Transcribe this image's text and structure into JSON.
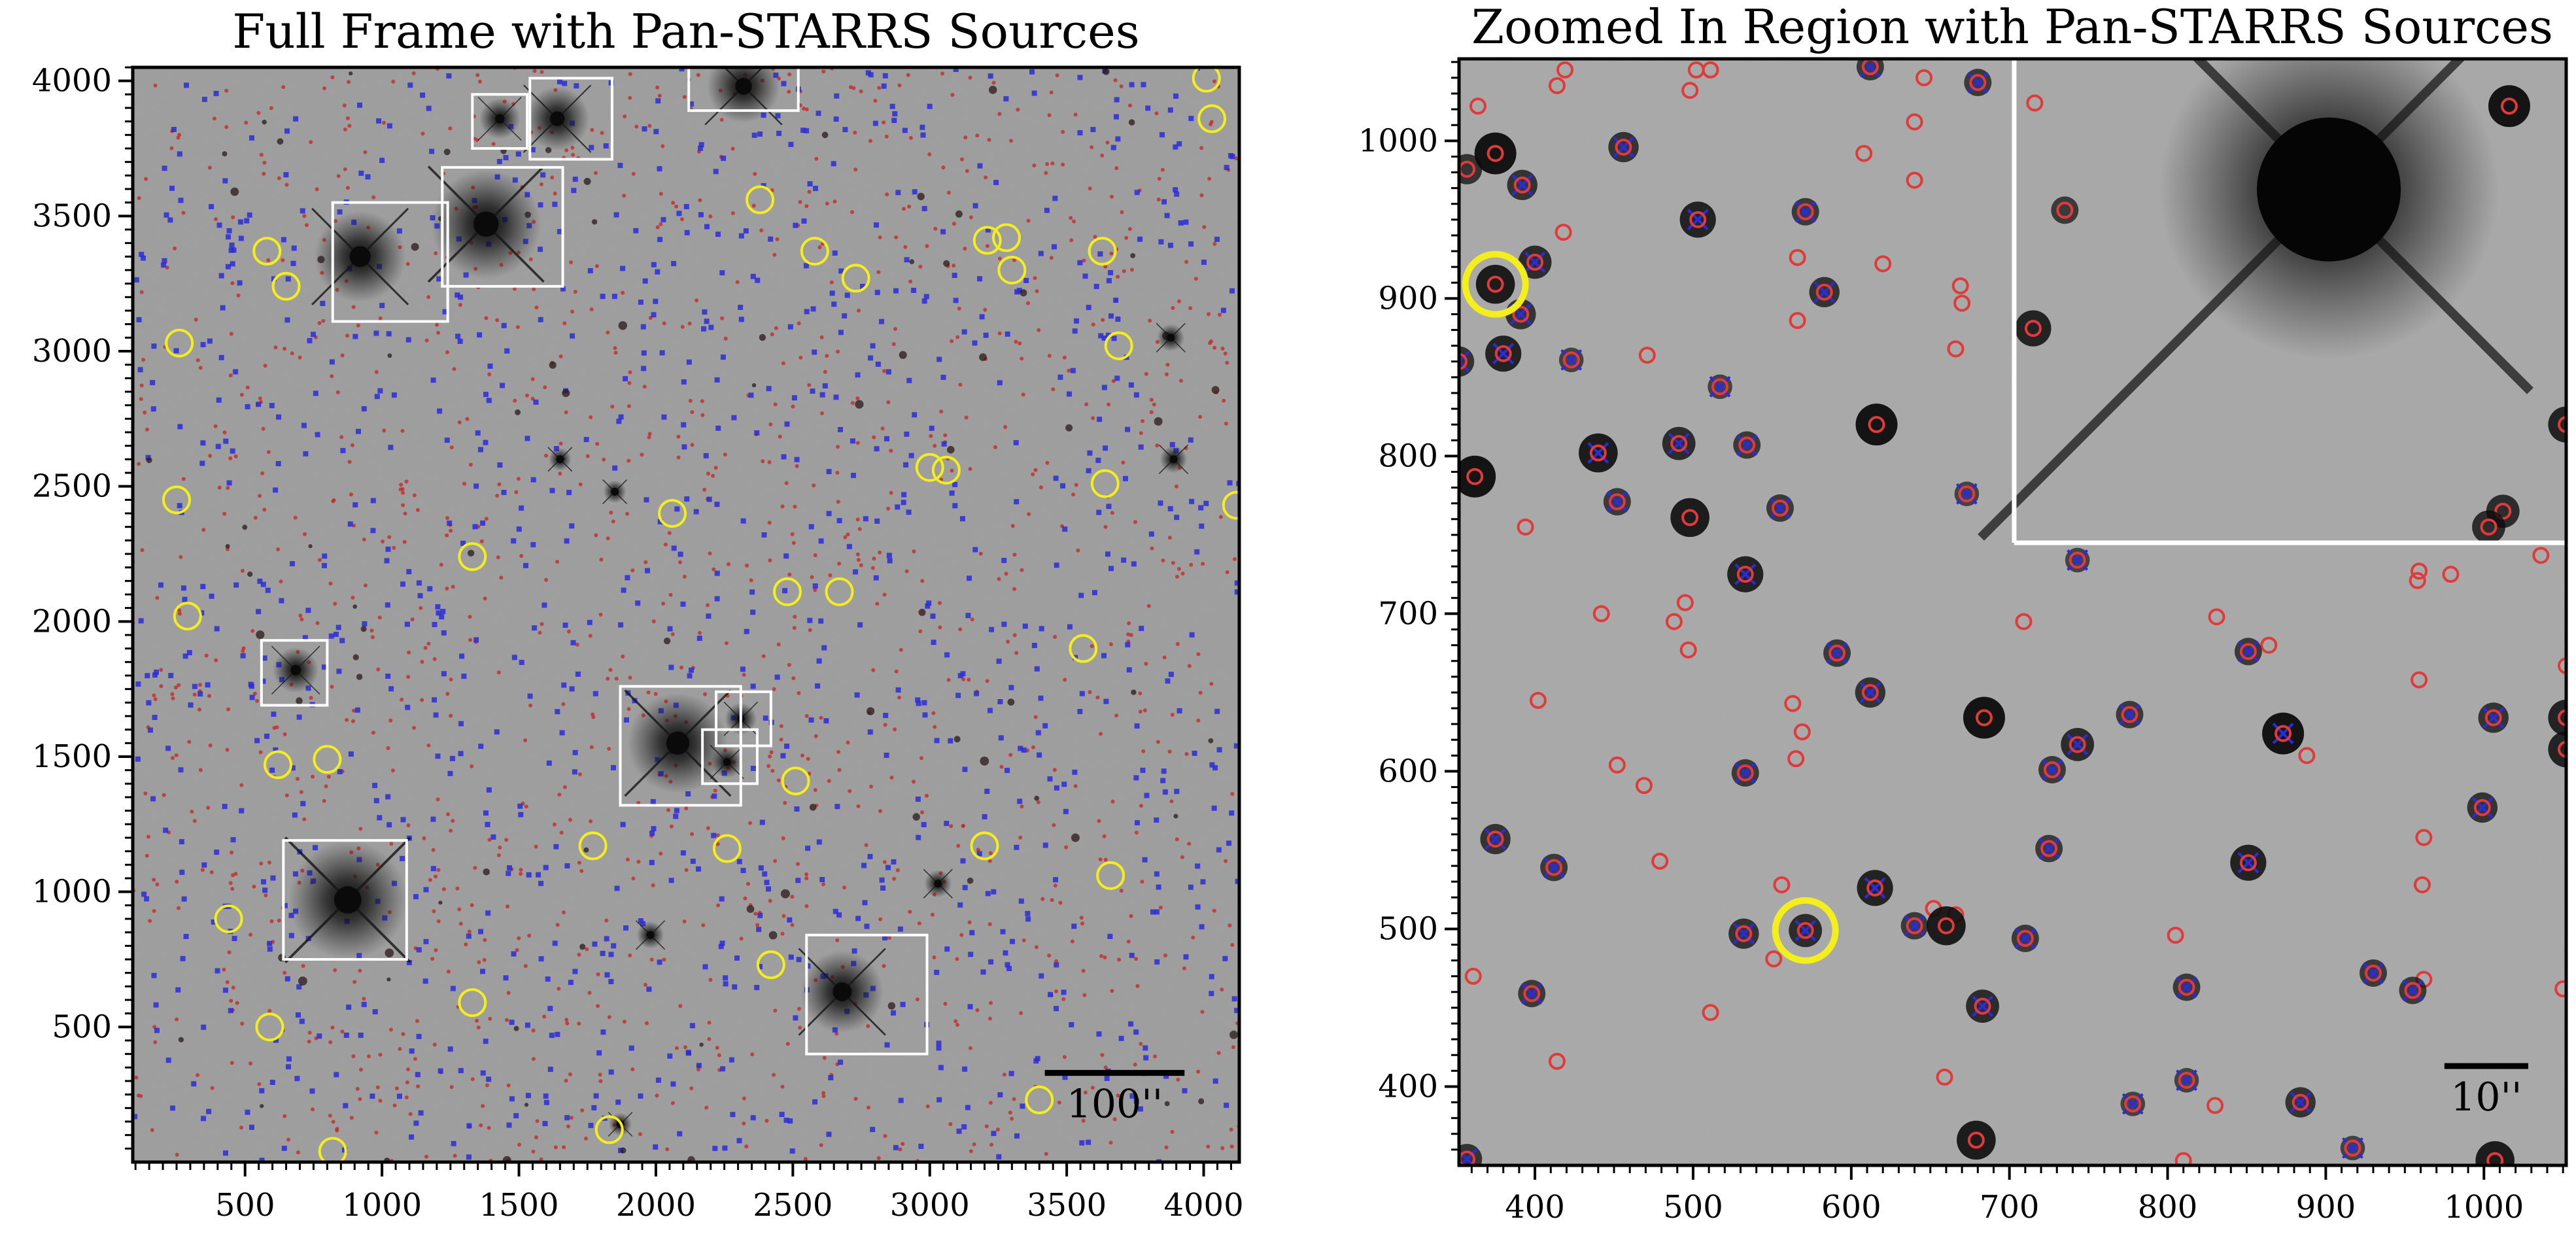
{
  "figure": {
    "colors": {
      "sky_background": "#9b9b9b",
      "star_core": "#0a0a0a",
      "pan_starrs_marker": "#e03a3a",
      "pan_starrs_dot": "#c42a2a",
      "blue_marker": "#2b2bd8",
      "yellow_circle": "#f3ee1c",
      "cutout_box": "#ffffff",
      "axis": "#000000"
    }
  },
  "chart_data": [
    {
      "type": "scatter",
      "title": "Full Frame with Pan-STARRS Sources",
      "xlabel": "",
      "ylabel": "",
      "xlim": [
        90,
        4130
      ],
      "ylim": [
        0,
        4050
      ],
      "x_ticks": [
        500,
        1000,
        1500,
        2000,
        2500,
        3000,
        3500,
        4000
      ],
      "y_ticks": [
        500,
        1000,
        1500,
        2000,
        2500,
        3000,
        3500,
        4000
      ],
      "scale_bar": {
        "label": "100''",
        "x_start": 3420,
        "x_end": 3930,
        "y": 330
      },
      "bright_stars": [
        {
          "x": 920,
          "y": 3350,
          "size": 1.0
        },
        {
          "x": 1380,
          "y": 3470,
          "size": 1.2
        },
        {
          "x": 1430,
          "y": 3860,
          "size": 0.45
        },
        {
          "x": 1640,
          "y": 3860,
          "size": 0.7
        },
        {
          "x": 2320,
          "y": 3980,
          "size": 0.8
        },
        {
          "x": 685,
          "y": 1820,
          "size": 0.5
        },
        {
          "x": 2080,
          "y": 1550,
          "size": 1.1
        },
        {
          "x": 2310,
          "y": 1640,
          "size": 0.35
        },
        {
          "x": 2260,
          "y": 1480,
          "size": 0.35
        },
        {
          "x": 875,
          "y": 970,
          "size": 1.3
        },
        {
          "x": 2680,
          "y": 630,
          "size": 0.9
        },
        {
          "x": 3030,
          "y": 1030,
          "size": 0.3
        },
        {
          "x": 1980,
          "y": 840,
          "size": 0.3
        },
        {
          "x": 3880,
          "y": 3050,
          "size": 0.3
        },
        {
          "x": 3890,
          "y": 2600,
          "size": 0.3
        },
        {
          "x": 1650,
          "y": 2600,
          "size": 0.25
        },
        {
          "x": 1850,
          "y": 2480,
          "size": 0.25
        },
        {
          "x": 1870,
          "y": 140,
          "size": 0.25
        }
      ],
      "cutout_boxes": [
        {
          "x0": 820,
          "y0": 3110,
          "x1": 1240,
          "y1": 3550
        },
        {
          "x0": 1220,
          "y0": 3240,
          "x1": 1660,
          "y1": 3680
        },
        {
          "x0": 1330,
          "y0": 3750,
          "x1": 1530,
          "y1": 3950
        },
        {
          "x0": 1540,
          "y0": 3710,
          "x1": 1840,
          "y1": 4010
        },
        {
          "x0": 2120,
          "y0": 3890,
          "x1": 2520,
          "y1": 4050
        },
        {
          "x0": 560,
          "y0": 1690,
          "x1": 800,
          "y1": 1930
        },
        {
          "x0": 1870,
          "y0": 1320,
          "x1": 2310,
          "y1": 1760
        },
        {
          "x0": 2220,
          "y0": 1540,
          "x1": 2420,
          "y1": 1740
        },
        {
          "x0": 2170,
          "y0": 1400,
          "x1": 2370,
          "y1": 1600
        },
        {
          "x0": 640,
          "y0": 750,
          "x1": 1090,
          "y1": 1190
        },
        {
          "x0": 2550,
          "y0": 400,
          "x1": 2990,
          "y1": 840
        }
      ],
      "yellow_circles": [
        {
          "x": 580,
          "y": 3370
        },
        {
          "x": 650,
          "y": 3240
        },
        {
          "x": 260,
          "y": 3030
        },
        {
          "x": 2380,
          "y": 3560
        },
        {
          "x": 2580,
          "y": 3370
        },
        {
          "x": 2730,
          "y": 3270
        },
        {
          "x": 3210,
          "y": 3410
        },
        {
          "x": 3280,
          "y": 3420
        },
        {
          "x": 3300,
          "y": 3300
        },
        {
          "x": 3630,
          "y": 3370
        },
        {
          "x": 3690,
          "y": 3020
        },
        {
          "x": 4010,
          "y": 4010
        },
        {
          "x": 4030,
          "y": 3860
        },
        {
          "x": 250,
          "y": 2450
        },
        {
          "x": 1330,
          "y": 2240
        },
        {
          "x": 2060,
          "y": 2400
        },
        {
          "x": 2480,
          "y": 2110
        },
        {
          "x": 2670,
          "y": 2110
        },
        {
          "x": 3000,
          "y": 2570
        },
        {
          "x": 3060,
          "y": 2560
        },
        {
          "x": 3640,
          "y": 2510
        },
        {
          "x": 4120,
          "y": 2430
        },
        {
          "x": 290,
          "y": 2020
        },
        {
          "x": 3560,
          "y": 1900
        },
        {
          "x": 620,
          "y": 1470
        },
        {
          "x": 800,
          "y": 1490
        },
        {
          "x": 2510,
          "y": 1410
        },
        {
          "x": 1770,
          "y": 1170
        },
        {
          "x": 2260,
          "y": 1160
        },
        {
          "x": 3200,
          "y": 1170
        },
        {
          "x": 3660,
          "y": 1060
        },
        {
          "x": 440,
          "y": 900
        },
        {
          "x": 2420,
          "y": 730
        },
        {
          "x": 1330,
          "y": 590
        },
        {
          "x": 590,
          "y": 500
        },
        {
          "x": 3400,
          "y": 230
        },
        {
          "x": 1830,
          "y": 120
        },
        {
          "x": 820,
          "y": 40
        }
      ]
    },
    {
      "type": "scatter",
      "title": "Zoomed In Region with Pan-STARRS Sources",
      "xlabel": "",
      "ylabel": "",
      "xlim": [
        352,
        1052
      ],
      "ylim": [
        350,
        1052
      ],
      "x_ticks": [
        400,
        500,
        600,
        700,
        800,
        900,
        1000
      ],
      "y_ticks": [
        400,
        500,
        600,
        700,
        800,
        900,
        1000
      ],
      "scale_bar": {
        "label": "10''",
        "x_start": 975,
        "x_end": 1028,
        "y": 413
      },
      "inset_region": {
        "x0": 703,
        "y0": 745,
        "x1": 1052,
        "y1": 1052
      },
      "yellow_circles": [
        {
          "x": 375,
          "y": 909
        },
        {
          "x": 571,
          "y": 499
        }
      ],
      "sources": [
        {
          "x": 375,
          "y": 992,
          "dark": 1.0,
          "cross": false
        },
        {
          "x": 357,
          "y": 982,
          "dark": 0.6,
          "cross": false
        },
        {
          "x": 392,
          "y": 972,
          "dark": 0.6,
          "cross": true
        },
        {
          "x": 456,
          "y": 996,
          "dark": 0.6,
          "cross": true
        },
        {
          "x": 503,
          "y": 950,
          "dark": 0.8,
          "cross": true
        },
        {
          "x": 571,
          "y": 955,
          "dark": 0.5,
          "cross": true
        },
        {
          "x": 612,
          "y": 1047,
          "dark": 0.5,
          "cross": true
        },
        {
          "x": 680,
          "y": 1037,
          "dark": 0.5,
          "cross": true
        },
        {
          "x": 400,
          "y": 923,
          "dark": 0.7,
          "cross": true
        },
        {
          "x": 375,
          "y": 909,
          "dark": 0.9,
          "cross": false
        },
        {
          "x": 391,
          "y": 890,
          "dark": 0.6,
          "cross": true
        },
        {
          "x": 583,
          "y": 904,
          "dark": 0.6,
          "cross": true
        },
        {
          "x": 380,
          "y": 865,
          "dark": 0.8,
          "cross": true
        },
        {
          "x": 352,
          "y": 860,
          "dark": 0.6,
          "cross": true
        },
        {
          "x": 423,
          "y": 861,
          "dark": 0.4,
          "cross": true
        },
        {
          "x": 517,
          "y": 844,
          "dark": 0.4,
          "cross": true
        },
        {
          "x": 616,
          "y": 820,
          "dark": 1.0,
          "cross": false
        },
        {
          "x": 440,
          "y": 802,
          "dark": 0.9,
          "cross": true
        },
        {
          "x": 491,
          "y": 808,
          "dark": 0.7,
          "cross": true
        },
        {
          "x": 534,
          "y": 807,
          "dark": 0.5,
          "cross": true
        },
        {
          "x": 362,
          "y": 787,
          "dark": 1.0,
          "cross": false
        },
        {
          "x": 452,
          "y": 771,
          "dark": 0.5,
          "cross": true
        },
        {
          "x": 498,
          "y": 761,
          "dark": 0.9,
          "cross": false
        },
        {
          "x": 555,
          "y": 767,
          "dark": 0.5,
          "cross": true
        },
        {
          "x": 673,
          "y": 776,
          "dark": 0.4,
          "cross": true
        },
        {
          "x": 533,
          "y": 725,
          "dark": 0.8,
          "cross": true
        },
        {
          "x": 743,
          "y": 734,
          "dark": 0.4,
          "cross": true
        },
        {
          "x": 591,
          "y": 675,
          "dark": 0.5,
          "cross": true
        },
        {
          "x": 612,
          "y": 650,
          "dark": 0.6,
          "cross": true
        },
        {
          "x": 684,
          "y": 634,
          "dark": 1.0,
          "cross": false
        },
        {
          "x": 776,
          "y": 636,
          "dark": 0.5,
          "cross": true
        },
        {
          "x": 851,
          "y": 676,
          "dark": 0.5,
          "cross": true
        },
        {
          "x": 873,
          "y": 624,
          "dark": 1.0,
          "cross": true
        },
        {
          "x": 743,
          "y": 617,
          "dark": 0.7,
          "cross": true
        },
        {
          "x": 727,
          "y": 601,
          "dark": 0.5,
          "cross": true
        },
        {
          "x": 533,
          "y": 599,
          "dark": 0.5,
          "cross": true
        },
        {
          "x": 1006,
          "y": 634,
          "dark": 0.6,
          "cross": true
        },
        {
          "x": 999,
          "y": 577,
          "dark": 0.6,
          "cross": true
        },
        {
          "x": 1052,
          "y": 634,
          "dark": 0.8,
          "cross": false
        },
        {
          "x": 375,
          "y": 557,
          "dark": 0.6,
          "cross": true
        },
        {
          "x": 412,
          "y": 539,
          "dark": 0.5,
          "cross": true
        },
        {
          "x": 615,
          "y": 526,
          "dark": 0.8,
          "cross": true
        },
        {
          "x": 851,
          "y": 542,
          "dark": 0.8,
          "cross": true
        },
        {
          "x": 725,
          "y": 551,
          "dark": 0.5,
          "cross": true
        },
        {
          "x": 532,
          "y": 497,
          "dark": 0.6,
          "cross": true
        },
        {
          "x": 571,
          "y": 499,
          "dark": 0.7,
          "cross": true
        },
        {
          "x": 640,
          "y": 502,
          "dark": 0.5,
          "cross": true
        },
        {
          "x": 660,
          "y": 502,
          "dark": 0.9,
          "cross": false
        },
        {
          "x": 710,
          "y": 494,
          "dark": 0.5,
          "cross": true
        },
        {
          "x": 398,
          "y": 459,
          "dark": 0.5,
          "cross": true
        },
        {
          "x": 683,
          "y": 451,
          "dark": 0.7,
          "cross": true
        },
        {
          "x": 812,
          "y": 463,
          "dark": 0.5,
          "cross": true
        },
        {
          "x": 930,
          "y": 472,
          "dark": 0.5,
          "cross": true
        },
        {
          "x": 955,
          "y": 461,
          "dark": 0.5,
          "cross": true
        },
        {
          "x": 812,
          "y": 404,
          "dark": 0.4,
          "cross": true
        },
        {
          "x": 778,
          "y": 389,
          "dark": 0.4,
          "cross": true
        },
        {
          "x": 884,
          "y": 390,
          "dark": 0.6,
          "cross": true
        },
        {
          "x": 679,
          "y": 366,
          "dark": 0.9,
          "cross": false
        },
        {
          "x": 917,
          "y": 361,
          "dark": 0.4,
          "cross": true
        },
        {
          "x": 1007,
          "y": 353,
          "dark": 0.9,
          "cross": false
        },
        {
          "x": 357,
          "y": 354,
          "dark": 0.6,
          "cross": true
        },
        {
          "x": 1016,
          "y": 1022,
          "dark": 1.0,
          "cross": false
        },
        {
          "x": 735,
          "y": 956,
          "dark": 0.5,
          "cross": false
        },
        {
          "x": 715,
          "y": 881,
          "dark": 0.8,
          "cross": false
        },
        {
          "x": 1052,
          "y": 820,
          "dark": 0.8,
          "cross": false
        },
        {
          "x": 1012,
          "y": 765,
          "dark": 0.7,
          "cross": false
        },
        {
          "x": 1003,
          "y": 755,
          "dark": 0.7,
          "cross": false
        },
        {
          "x": 1052,
          "y": 614,
          "dark": 0.8,
          "cross": false
        }
      ],
      "red_only": [
        {
          "x": 364,
          "y": 1022
        },
        {
          "x": 414,
          "y": 1035
        },
        {
          "x": 419,
          "y": 1045
        },
        {
          "x": 502,
          "y": 1045
        },
        {
          "x": 498,
          "y": 1032
        },
        {
          "x": 511,
          "y": 1045
        },
        {
          "x": 646,
          "y": 1040
        },
        {
          "x": 608,
          "y": 992
        },
        {
          "x": 640,
          "y": 1012
        },
        {
          "x": 640,
          "y": 975
        },
        {
          "x": 716,
          "y": 1024
        },
        {
          "x": 418,
          "y": 942
        },
        {
          "x": 566,
          "y": 926
        },
        {
          "x": 620,
          "y": 922
        },
        {
          "x": 669,
          "y": 908
        },
        {
          "x": 670,
          "y": 897
        },
        {
          "x": 566,
          "y": 886
        },
        {
          "x": 666,
          "y": 868
        },
        {
          "x": 471,
          "y": 864
        },
        {
          "x": 394,
          "y": 755
        },
        {
          "x": 495,
          "y": 707
        },
        {
          "x": 488,
          "y": 695
        },
        {
          "x": 442,
          "y": 700
        },
        {
          "x": 497,
          "y": 677
        },
        {
          "x": 709,
          "y": 695
        },
        {
          "x": 959,
          "y": 727
        },
        {
          "x": 958,
          "y": 721
        },
        {
          "x": 979,
          "y": 725
        },
        {
          "x": 1036,
          "y": 737
        },
        {
          "x": 831,
          "y": 698
        },
        {
          "x": 864,
          "y": 680
        },
        {
          "x": 1052,
          "y": 667
        },
        {
          "x": 959,
          "y": 658
        },
        {
          "x": 402,
          "y": 645
        },
        {
          "x": 563,
          "y": 643
        },
        {
          "x": 569,
          "y": 625
        },
        {
          "x": 565,
          "y": 608
        },
        {
          "x": 452,
          "y": 604
        },
        {
          "x": 469,
          "y": 591
        },
        {
          "x": 888,
          "y": 610
        },
        {
          "x": 962,
          "y": 558
        },
        {
          "x": 961,
          "y": 528
        },
        {
          "x": 479,
          "y": 543
        },
        {
          "x": 556,
          "y": 528
        },
        {
          "x": 652,
          "y": 513
        },
        {
          "x": 666,
          "y": 509
        },
        {
          "x": 805,
          "y": 496
        },
        {
          "x": 551,
          "y": 481
        },
        {
          "x": 361,
          "y": 470
        },
        {
          "x": 962,
          "y": 468
        },
        {
          "x": 1050,
          "y": 462
        },
        {
          "x": 511,
          "y": 447
        },
        {
          "x": 414,
          "y": 416
        },
        {
          "x": 659,
          "y": 406
        },
        {
          "x": 830,
          "y": 388
        },
        {
          "x": 810,
          "y": 353
        }
      ]
    }
  ]
}
